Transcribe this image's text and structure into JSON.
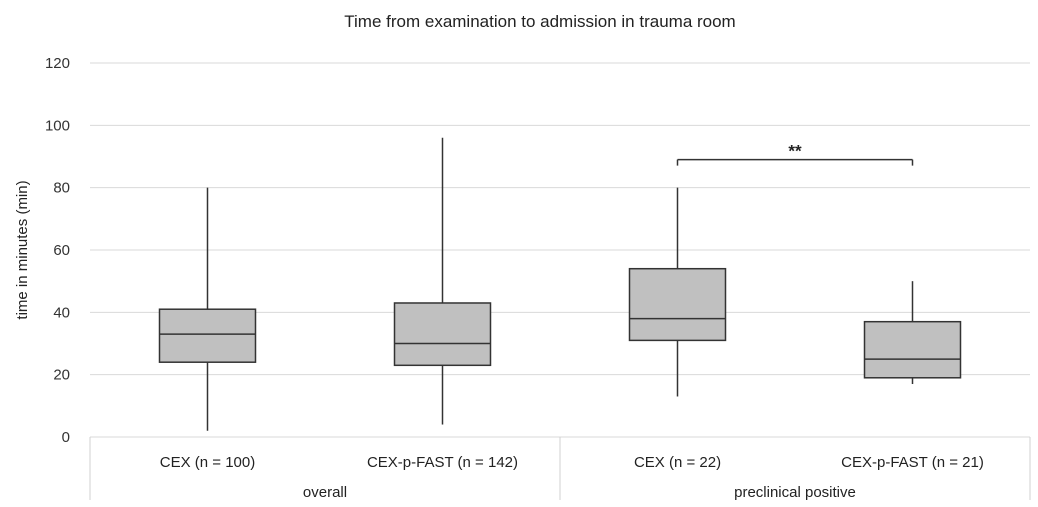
{
  "chart_data": {
    "type": "box",
    "title": "Time from examination to admission in trauma room",
    "ylabel": "time in minutes (min)",
    "xlabel": "",
    "ylim": [
      0,
      120
    ],
    "yticks": [
      0,
      20,
      40,
      60,
      80,
      100,
      120
    ],
    "grid": true,
    "groups": [
      {
        "name": "overall",
        "categories": [
          0,
          1
        ]
      },
      {
        "name": "preclinical positive",
        "categories": [
          2,
          3
        ]
      }
    ],
    "boxes": [
      {
        "label": "CEX (n = 100)",
        "min": 2,
        "q1": 24,
        "median": 33,
        "q3": 41,
        "max": 80
      },
      {
        "label": "CEX-p-FAST (n = 142)",
        "min": 4,
        "q1": 23,
        "median": 30,
        "q3": 43,
        "max": 96
      },
      {
        "label": "CEX (n = 22)",
        "min": 13,
        "q1": 31,
        "median": 38,
        "q3": 54,
        "max": 80
      },
      {
        "label": "CEX-p-FAST (n = 21)",
        "min": 17,
        "q1": 19,
        "median": 25,
        "q3": 37,
        "max": 50
      }
    ],
    "annotations": [
      {
        "text": "**",
        "from": 2,
        "to": 3,
        "y": 89
      }
    ],
    "box_color": "#c0c0c0"
  }
}
